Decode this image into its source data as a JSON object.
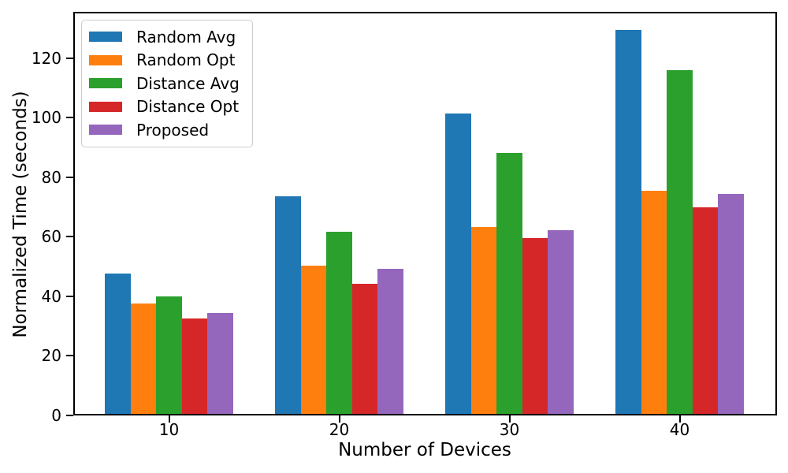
{
  "chart_data": {
    "type": "bar",
    "title": "",
    "xlabel": "Number of Devices",
    "ylabel": "Normalized Time (seconds)",
    "categories": [
      "10",
      "20",
      "30",
      "40"
    ],
    "series": [
      {
        "name": "Random Avg",
        "color": "#1f77b4",
        "values": [
          47.7,
          73.7,
          101.5,
          129.5
        ]
      },
      {
        "name": "Random Opt",
        "color": "#ff7f0e",
        "values": [
          37.7,
          50.2,
          63.4,
          75.5
        ]
      },
      {
        "name": "Distance Avg",
        "color": "#2ca02c",
        "values": [
          40.1,
          61.8,
          88.2,
          116.0
        ]
      },
      {
        "name": "Distance Opt",
        "color": "#d62728",
        "values": [
          32.7,
          44.2,
          59.7,
          69.8
        ]
      },
      {
        "name": "Proposed",
        "color": "#9467bd",
        "values": [
          34.4,
          49.2,
          62.3,
          74.5
        ]
      }
    ],
    "yticks": [
      0,
      20,
      40,
      60,
      80,
      100,
      120
    ],
    "ylim": [
      0,
      135.6
    ],
    "legend_position": "upper left",
    "grid": false,
    "axis_color": "#000000",
    "background_color": "#ffffff"
  }
}
